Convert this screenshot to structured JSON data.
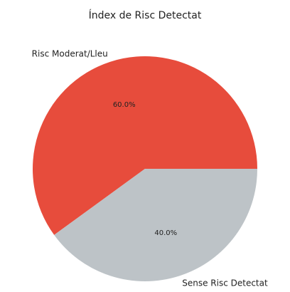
{
  "chart_data": {
    "type": "pie",
    "title": "Índex de Risc Detectat",
    "categories": [
      "Risc Moderat/Lleu",
      "Sense Risc Detectat"
    ],
    "values": [
      60,
      40
    ],
    "value_labels": [
      "60.0%",
      "40.0%"
    ],
    "colors": [
      "#e74c3c",
      "#bdc3c7"
    ]
  }
}
